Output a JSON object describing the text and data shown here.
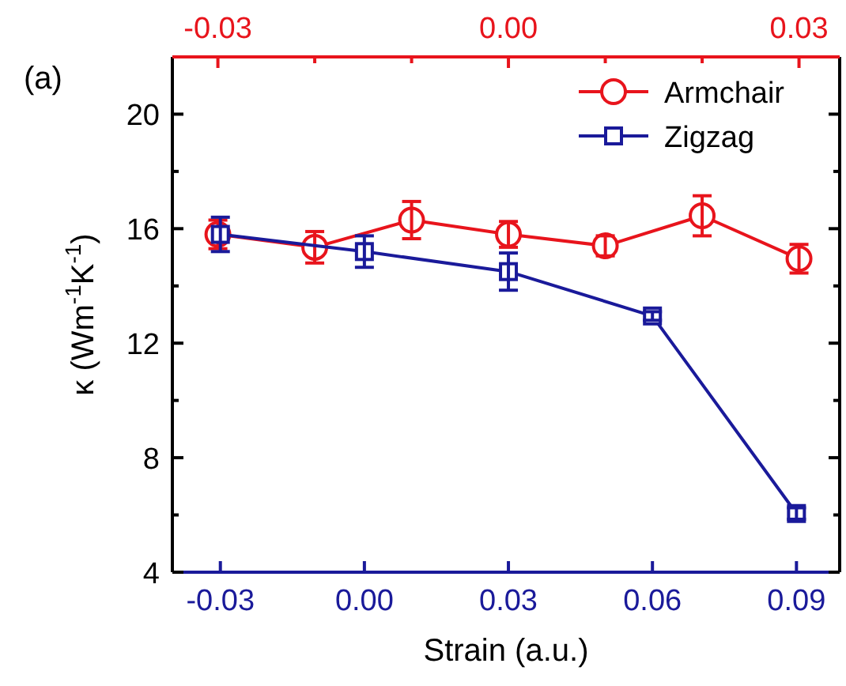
{
  "chart_data": {
    "type": "line",
    "xlabel": "Strain (a.u.)",
    "ylabel": "κ (Wm$^{-1}$K$^{-1}$)",
    "annotations": [
      "(a)"
    ],
    "xlim": [
      -0.04,
      0.099
    ],
    "xticks": [
      {
        "value": -0.03,
        "label": "-0.03"
      },
      {
        "value": 0,
        "label": "0.00"
      },
      {
        "value": 0.03,
        "label": "0.03"
      },
      {
        "value": 0.06,
        "label": "0.06"
      },
      {
        "value": 0.09,
        "label": "0.09"
      }
    ],
    "x2lim": [
      -0.0347,
      0.0342
    ],
    "x2ticks": [
      {
        "value": -0.03,
        "label": "-0.03"
      },
      {
        "value": -0.02,
        "label": null
      },
      {
        "value": -0.01,
        "label": null
      },
      {
        "value": 0,
        "label": "0.00"
      },
      {
        "value": 0.01,
        "label": null
      },
      {
        "value": 0.02,
        "label": null
      },
      {
        "value": 0.03,
        "label": "0.03"
      }
    ],
    "ylim": [
      4,
      22
    ],
    "yticks": [
      4,
      {
        "value": 6,
        "label": null
      },
      8,
      {
        "value": 10,
        "label": null
      },
      12,
      {
        "value": 14,
        "label": null
      },
      16,
      {
        "value": 18,
        "label": null
      },
      20
    ],
    "legend": "top right",
    "grid": false,
    "line_style": "solid",
    "series": [
      {
        "name": "Armchair",
        "color": "#e8141c",
        "axis": "x2",
        "marker": "circle",
        "x": [
          -0.03,
          -0.02,
          -0.01,
          0,
          0.01,
          0.02,
          0.03
        ],
        "values": [
          15.8,
          15.35,
          16.3,
          15.8,
          15.4,
          16.45,
          14.95
        ],
        "errors": [
          0.5,
          0.55,
          0.65,
          0.45,
          0.35,
          0.7,
          0.5
        ]
      },
      {
        "name": "Zigzag",
        "color": "#1a1a9a",
        "marker": "square",
        "x": [
          -0.03,
          0,
          0.03,
          0.06,
          0.09
        ],
        "values": [
          15.8,
          15.2,
          14.5,
          12.95,
          6.05
        ],
        "errors": [
          0.6,
          0.55,
          0.65,
          0.15,
          0.2
        ]
      }
    ]
  }
}
